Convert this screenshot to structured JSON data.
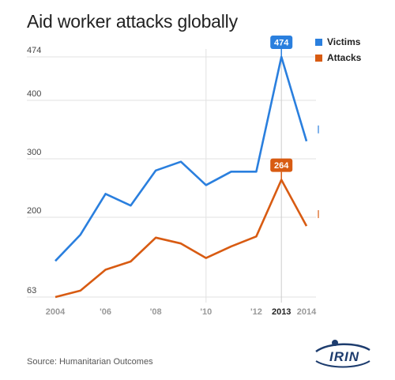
{
  "chart_data": {
    "type": "line",
    "title": "Aid worker attacks globally",
    "x": [
      2004,
      2005,
      2006,
      2007,
      2008,
      2009,
      2010,
      2011,
      2012,
      2013,
      2014
    ],
    "x_tick_labels": [
      {
        "x": 2004,
        "label": "2004",
        "bold": false
      },
      {
        "x": 2006,
        "label": "'06",
        "bold": false
      },
      {
        "x": 2008,
        "label": "'08",
        "bold": false
      },
      {
        "x": 2010,
        "label": "'10",
        "bold": false
      },
      {
        "x": 2012,
        "label": "'12",
        "bold": false
      },
      {
        "x": 2013,
        "label": "2013",
        "bold": true
      },
      {
        "x": 2014,
        "label": "2014",
        "bold": false
      }
    ],
    "y_ticks": [
      63,
      200,
      300,
      400,
      474
    ],
    "ylim": [
      63,
      474
    ],
    "series": [
      {
        "name": "Victims",
        "color": "#2a7fde",
        "values": [
          125,
          170,
          240,
          220,
          280,
          295,
          255,
          278,
          278,
          474,
          330
        ]
      },
      {
        "name": "Attacks",
        "color": "#d85b12",
        "values": [
          63,
          74,
          110,
          124,
          165,
          155,
          130,
          150,
          167,
          264,
          185
        ]
      }
    ],
    "callouts": [
      {
        "series": "Victims",
        "x": 2013,
        "label": "474"
      },
      {
        "series": "Attacks",
        "x": 2013,
        "label": "264"
      }
    ],
    "highlight_x": 2013,
    "legend_position": "top-right",
    "grid": true
  },
  "source": "Source: Humanitarian Outcomes",
  "logo": "IRIN"
}
